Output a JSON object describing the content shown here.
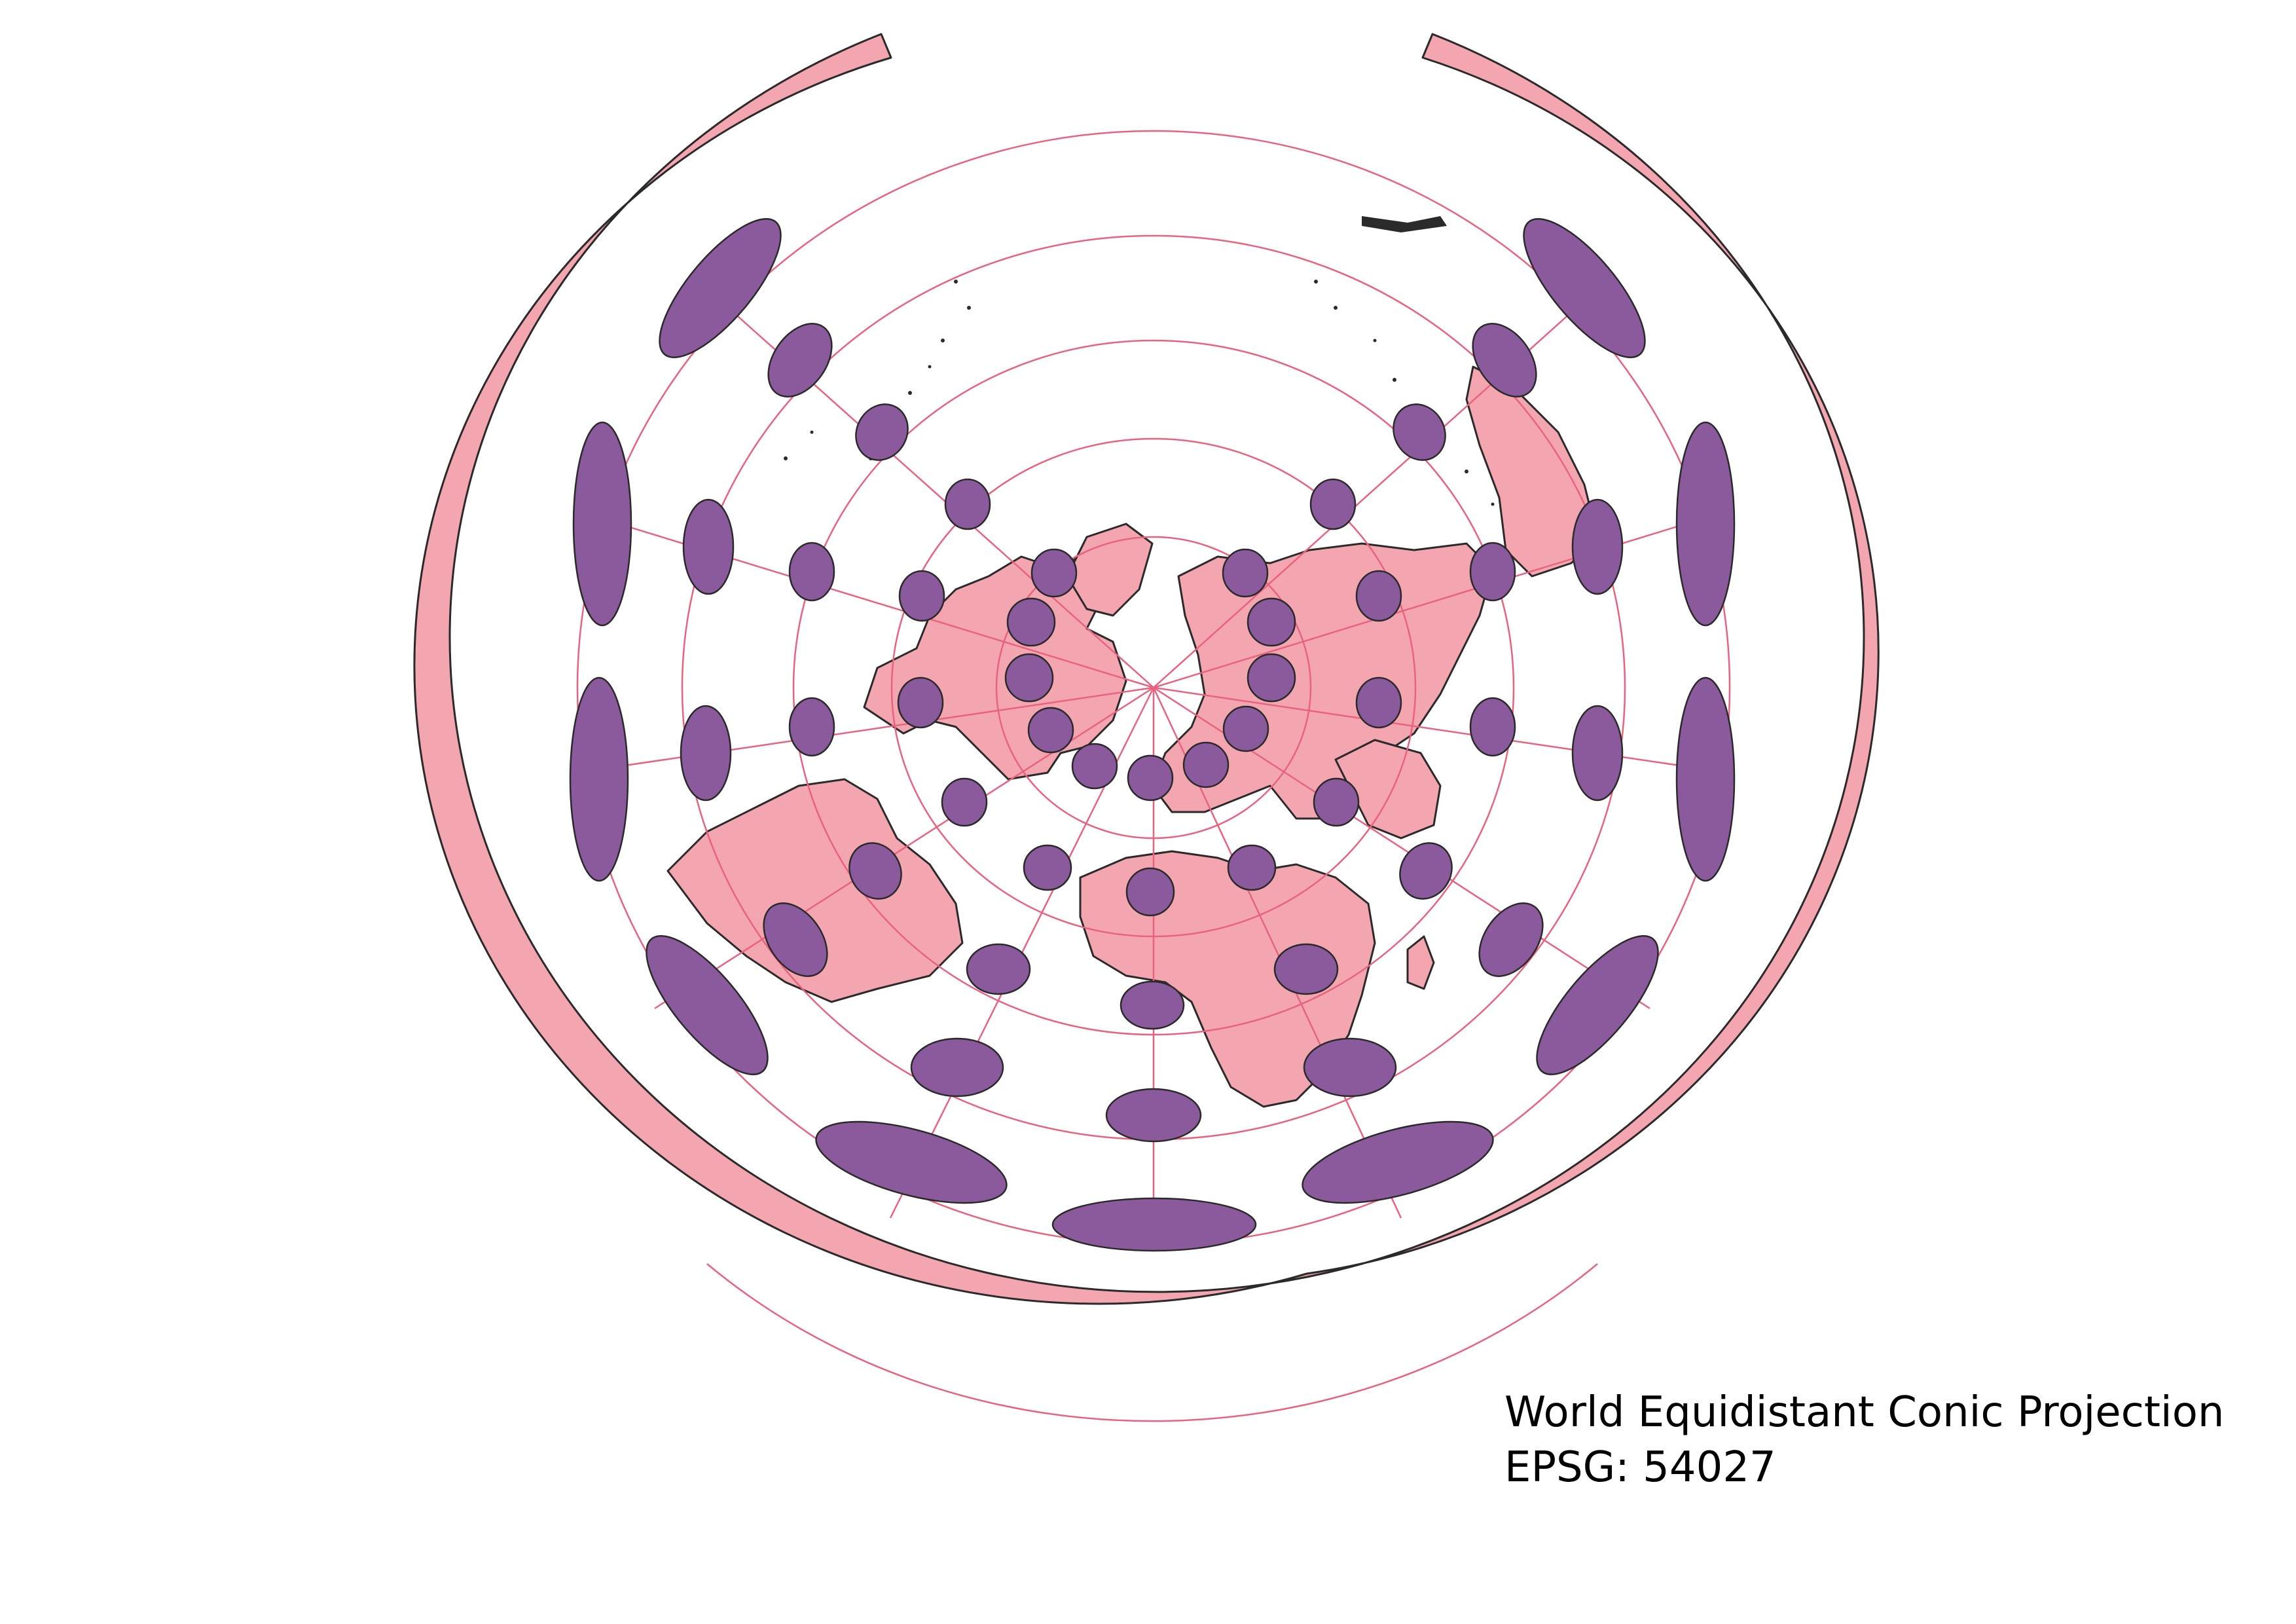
{
  "map": {
    "title": "World Equidistant Conic Projection",
    "epsg_label": "EPSG: 54027",
    "colors": {
      "background": "#ffffff",
      "land_fill": "#f4a6b0",
      "land_outline": "#2a2a2a",
      "graticule": "#e8637f",
      "tissot_fill": "#8b5a9c"
    },
    "layers": [
      "land",
      "graticule",
      "tissot-indicatrices"
    ]
  }
}
